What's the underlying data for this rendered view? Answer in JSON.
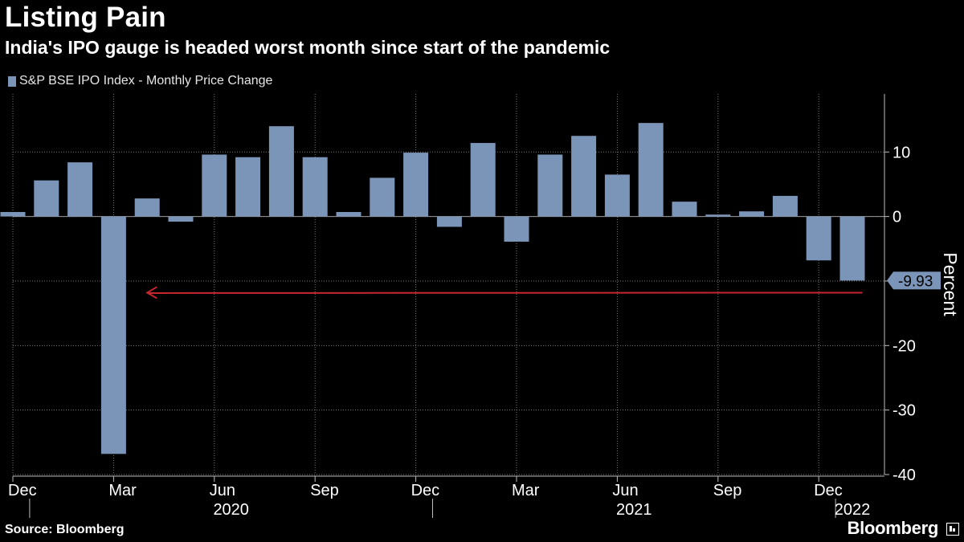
{
  "header": {
    "title": "Listing Pain",
    "subtitle": "India's IPO gauge is headed worst month since start of the pandemic"
  },
  "legend": {
    "label": "S&P BSE IPO Index - Monthly Price Change",
    "color": "#7b95b8"
  },
  "footer": {
    "source": "Source: Bloomberg",
    "brand": "Bloomberg"
  },
  "colors": {
    "bar": "#7b95b8",
    "grid": "#7a7a7a",
    "arrow": "#c8272f",
    "text": "#ffffff"
  },
  "chart_data": {
    "type": "bar",
    "title": "S&P BSE IPO Index - Monthly Price Change",
    "ylabel": "Percent",
    "xlabel": "",
    "ylim": [
      -40,
      19
    ],
    "yticks": [
      10,
      0,
      -10,
      -20,
      -30,
      -40
    ],
    "ytick_labels": [
      "10",
      "0",
      "",
      "-20",
      "-30",
      "-40"
    ],
    "grid": true,
    "categories": [
      "Dec 2019",
      "Jan 2020",
      "Feb 2020",
      "Mar 2020",
      "Apr 2020",
      "May 2020",
      "Jun 2020",
      "Jul 2020",
      "Aug 2020",
      "Sep 2020",
      "Oct 2020",
      "Nov 2020",
      "Dec 2020",
      "Jan 2021",
      "Feb 2021",
      "Mar 2021",
      "Apr 2021",
      "May 2021",
      "Jun 2021",
      "Jul 2021",
      "Aug 2021",
      "Sep 2021",
      "Oct 2021",
      "Nov 2021",
      "Dec 2021",
      "Jan 2022"
    ],
    "values": [
      0.7,
      5.6,
      8.4,
      -36.8,
      2.8,
      -0.8,
      9.6,
      9.2,
      14.0,
      9.2,
      0.7,
      6.0,
      9.9,
      -1.6,
      11.4,
      -3.9,
      9.6,
      12.5,
      6.5,
      14.5,
      2.3,
      0.3,
      0.8,
      3.2,
      -6.8,
      -9.93
    ],
    "xtick_month_labels": [
      {
        "index": 0,
        "label": "Dec"
      },
      {
        "index": 3,
        "label": "Mar"
      },
      {
        "index": 6,
        "label": "Jun"
      },
      {
        "index": 9,
        "label": "Sep"
      },
      {
        "index": 12,
        "label": "Dec"
      },
      {
        "index": 15,
        "label": "Mar"
      },
      {
        "index": 18,
        "label": "Jun"
      },
      {
        "index": 21,
        "label": "Sep"
      },
      {
        "index": 24,
        "label": "Dec"
      }
    ],
    "year_labels": [
      {
        "label": "2020",
        "from": 1,
        "to": 12
      },
      {
        "label": "2021",
        "from": 13,
        "to": 24
      },
      {
        "label": "2022",
        "from": 25,
        "to": 25
      }
    ],
    "year_separators": [
      0.5,
      12.5,
      24.5
    ],
    "last_value_label": "-9.93",
    "last_value": -9.93,
    "annotation": {
      "type": "arrow",
      "value": -11.8,
      "from_index": 25.3,
      "to_index": 4.0
    }
  }
}
